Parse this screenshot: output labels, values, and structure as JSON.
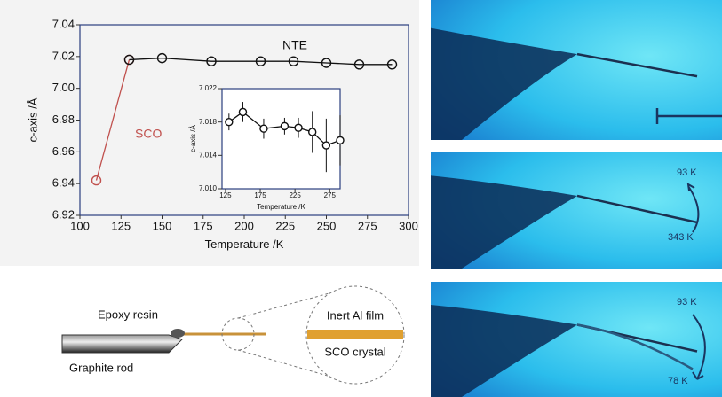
{
  "chart_data": [
    {
      "type": "line",
      "xlabel": "Temperature /K",
      "ylabel": "c-axis /Å",
      "xlim": [
        100,
        300
      ],
      "xticks": [
        100,
        125,
        150,
        175,
        200,
        225,
        250,
        275,
        300
      ],
      "ylim": [
        6.92,
        7.04
      ],
      "yticks": [
        6.92,
        6.94,
        6.96,
        6.98,
        {
          "value": 7.0,
          "label": "7.00"
        },
        7.02,
        7.04
      ],
      "series": [
        {
          "color": "#c0504d",
          "x": [
            110,
            130
          ],
          "values": [
            6.942,
            7.018
          ]
        },
        {
          "color": "#111111",
          "x": [
            130,
            150,
            180,
            210,
            230,
            250,
            270,
            290
          ],
          "values": [
            7.018,
            7.019,
            7.017,
            7.017,
            7.017,
            7.016,
            7.015,
            7.015
          ]
        }
      ],
      "annotations": [
        {
          "text": "NTE",
          "color": "#111111"
        },
        {
          "text": "SCO",
          "color": "#c0504d"
        }
      ]
    },
    {
      "type": "line",
      "xlabel": "Temperature /K",
      "ylabel": "c-axis /Å",
      "xlim": [
        120,
        290
      ],
      "xticks": [
        125,
        175,
        225,
        275
      ],
      "ylim": [
        7.01,
        7.022
      ],
      "yticks": [
        {
          "value": 7.01,
          "label": "7.010"
        },
        7.014,
        7.018,
        7.022
      ],
      "series": [
        {
          "color": "#111111",
          "x": [
            130,
            150,
            180,
            210,
            230,
            250,
            270,
            290
          ],
          "values": [
            7.018,
            7.0192,
            7.0172,
            7.0175,
            7.0173,
            7.0168,
            7.0152,
            7.0158
          ],
          "errors": [
            0.001,
            0.0012,
            0.0012,
            0.001,
            0.0012,
            0.0025,
            0.0032,
            0.003
          ]
        }
      ]
    }
  ],
  "diagram": {
    "epoxy": "Epoxy resin",
    "rod": "Graphite rod",
    "film": "Inert Al film",
    "crystal": "SCO crystal"
  },
  "photos": {
    "p2_top": "93 K",
    "p2_bottom": "343 K",
    "p3_top": "93 K",
    "p3_bottom": "78 K"
  }
}
